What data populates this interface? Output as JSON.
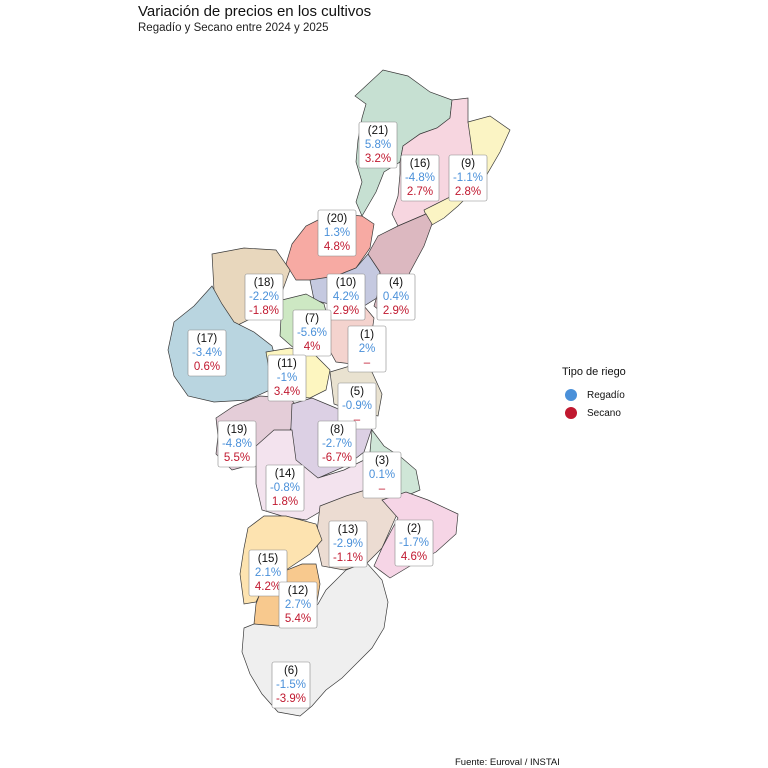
{
  "header": {
    "title": "Variación de precios en los cultivos",
    "subtitle": "Regadío y Secano entre 2024 y 2025"
  },
  "legend": {
    "title": "Tipo de riego",
    "items": [
      {
        "label": "Regadío",
        "color": "#4a90d9"
      },
      {
        "label": "Secano",
        "color": "#c0182f"
      }
    ]
  },
  "footer": {
    "source": "Fuente: Euroval / INSTAI"
  },
  "regions": [
    {
      "id": "(21)",
      "regadio": "5.8%",
      "secano": "3.2%",
      "color": "#c6e0d2"
    },
    {
      "id": "(16)",
      "regadio": "-4.8%",
      "secano": "2.7%",
      "color": "#f7d6e0"
    },
    {
      "id": "(9)",
      "regadio": "-1.1%",
      "secano": "2.8%",
      "color": "#fbf4c4"
    },
    {
      "id": "(20)",
      "regadio": "1.3%",
      "secano": "4.8%",
      "color": "#f7aaa3"
    },
    {
      "id": "(10)",
      "regadio": "4.2%",
      "secano": "2.9%",
      "color": "#c5c9e0"
    },
    {
      "id": "(4)",
      "regadio": "0.4%",
      "secano": "2.9%",
      "color": "#dcb8c0"
    },
    {
      "id": "(18)",
      "regadio": "-2.2%",
      "secano": "-1.8%",
      "color": "#e8d7bd"
    },
    {
      "id": "(7)",
      "regadio": "-5.6%",
      "secano": "4%",
      "color": "#cde8c3"
    },
    {
      "id": "(1)",
      "regadio": "2%",
      "secano": "–",
      "color": "#f4d3ce"
    },
    {
      "id": "(17)",
      "regadio": "-3.4%",
      "secano": "0.6%",
      "color": "#b9d5e0"
    },
    {
      "id": "(11)",
      "regadio": "-1%",
      "secano": "3.4%",
      "color": "#fdf6c0"
    },
    {
      "id": "(5)",
      "regadio": "-0.9%",
      "secano": "–",
      "color": "#e9e2d0"
    },
    {
      "id": "(19)",
      "regadio": "-4.8%",
      "secano": "5.5%",
      "color": "#e4cdd8"
    },
    {
      "id": "(8)",
      "regadio": "-2.7%",
      "secano": "-6.7%",
      "color": "#dcd0e4"
    },
    {
      "id": "(3)",
      "regadio": "0.1%",
      "secano": "–",
      "color": "#cfe6d7"
    },
    {
      "id": "(14)",
      "regadio": "-0.8%",
      "secano": "1.8%",
      "color": "#f3e3ee"
    },
    {
      "id": "(13)",
      "regadio": "-2.9%",
      "secano": "-1.1%",
      "color": "#ecdcd2"
    },
    {
      "id": "(2)",
      "regadio": "-1.7%",
      "secano": "4.6%",
      "color": "#f6d5e6"
    },
    {
      "id": "(15)",
      "regadio": "2.1%",
      "secano": "4.2%",
      "color": "#fde3b0"
    },
    {
      "id": "(12)",
      "regadio": "2.7%",
      "secano": "5.4%",
      "color": "#f8c98e"
    },
    {
      "id": "(6)",
      "regadio": "-1.5%",
      "secano": "-3.9%",
      "color": "#efefef"
    }
  ]
}
